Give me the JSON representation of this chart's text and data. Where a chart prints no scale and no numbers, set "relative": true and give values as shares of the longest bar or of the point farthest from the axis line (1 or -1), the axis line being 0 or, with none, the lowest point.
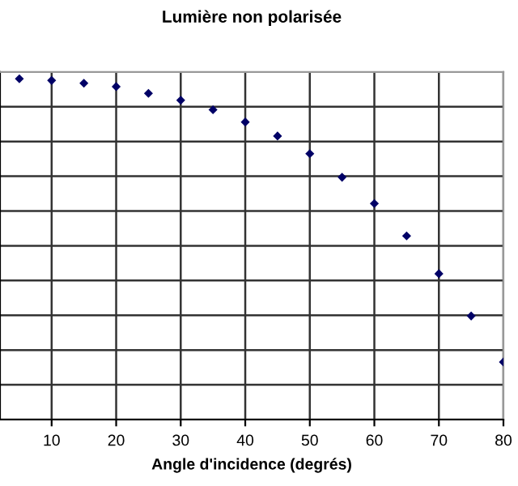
{
  "chart_data": {
    "type": "scatter",
    "title": "Lumière non polarisée",
    "xlabel": "Angle d'incidence (degrés)",
    "x": [
      5,
      10,
      15,
      20,
      25,
      30,
      35,
      40,
      45,
      50,
      55,
      60,
      65,
      70,
      75,
      80
    ],
    "values": [
      1,
      0.995,
      0.987,
      0.977,
      0.957,
      0.937,
      0.909,
      0.873,
      0.832,
      0.78,
      0.711,
      0.634,
      0.539,
      0.428,
      0.304,
      0.169
    ],
    "color": "#000066",
    "marker": "diamond",
    "relative": true,
    "xlim": [
      2,
      80
    ],
    "xticks": [
      10,
      20,
      30,
      40,
      50,
      60,
      70,
      80
    ],
    "grid": true,
    "legend": false
  }
}
